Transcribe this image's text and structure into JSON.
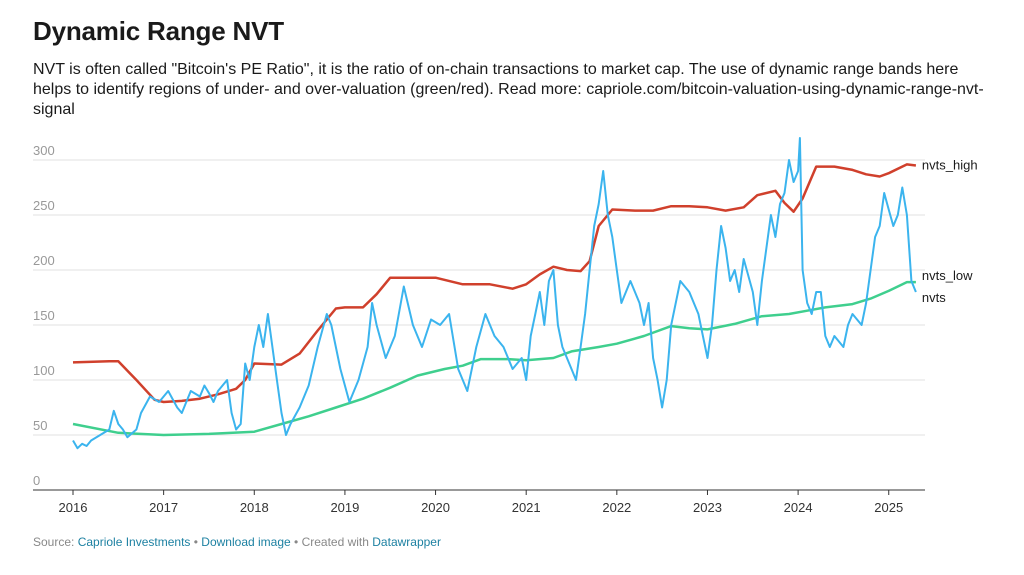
{
  "title": "Dynamic Range NVT",
  "description": "NVT is often called \"Bitcoin's PE Ratio\", it is the ratio of on-chain transactions to market cap. The use of dynamic range bands here helps to identify regions of under- and over-valuation (green/red). Read more: capriole.com/bitcoin-valuation-using-dynamic-range-nvt-signal",
  "footer": {
    "source_prefix": "Source: ",
    "source_link": "Capriole Investments",
    "download": "Download image",
    "created_prefix": "Created with ",
    "created_link": "Datawrapper",
    "separator": " • "
  },
  "colors": {
    "nvts": "#3bb4ee",
    "nvts_high": "#d0402c",
    "nvts_low": "#3fcf8e",
    "grid": "#e2e2e2"
  },
  "chart_data": {
    "type": "line",
    "title": "Dynamic Range NVT",
    "xlabel": "",
    "ylabel": "",
    "xlim": [
      2016,
      2025.4
    ],
    "ylim": [
      0,
      300
    ],
    "yticks": [
      0,
      50,
      100,
      150,
      200,
      250,
      300
    ],
    "xticks": [
      "2016",
      "2017",
      "2018",
      "2019",
      "2020",
      "2021",
      "2022",
      "2023",
      "2024",
      "2025"
    ],
    "grid": true,
    "series": [
      {
        "name": "nvts_high",
        "x": [
          2016.0,
          2016.4,
          2016.5,
          2016.7,
          2016.9,
          2017.0,
          2017.2,
          2017.4,
          2017.6,
          2017.8,
          2017.9,
          2018.0,
          2018.3,
          2018.5,
          2018.7,
          2018.9,
          2019.0,
          2019.2,
          2019.35,
          2019.5,
          2019.8,
          2020.0,
          2020.3,
          2020.6,
          2020.85,
          2021.0,
          2021.15,
          2021.3,
          2021.45,
          2021.6,
          2021.7,
          2021.8,
          2021.95,
          2022.2,
          2022.4,
          2022.6,
          2022.8,
          2023.0,
          2023.2,
          2023.4,
          2023.55,
          2023.75,
          2023.85,
          2023.95,
          2024.05,
          2024.2,
          2024.4,
          2024.6,
          2024.75,
          2024.9,
          2025.0,
          2025.2,
          2025.3
        ],
        "values": [
          116,
          117,
          117,
          100,
          82,
          80,
          81,
          83,
          87,
          92,
          100,
          115,
          114,
          124,
          145,
          165,
          166,
          166,
          178,
          193,
          193,
          193,
          187,
          187,
          183,
          187,
          196,
          203,
          200,
          199,
          208,
          240,
          255,
          254,
          254,
          258,
          258,
          257,
          254,
          257,
          268,
          272,
          261,
          253,
          265,
          294,
          294,
          291,
          287,
          285,
          288,
          296,
          295
        ]
      },
      {
        "name": "nvts_low",
        "x": [
          2016.0,
          2016.5,
          2017.0,
          2017.5,
          2018.0,
          2018.3,
          2018.6,
          2018.9,
          2019.2,
          2019.5,
          2019.8,
          2020.1,
          2020.3,
          2020.5,
          2020.8,
          2021.0,
          2021.3,
          2021.5,
          2021.8,
          2022.0,
          2022.3,
          2022.6,
          2022.8,
          2023.0,
          2023.3,
          2023.6,
          2023.9,
          2024.1,
          2024.3,
          2024.6,
          2024.8,
          2025.0,
          2025.2,
          2025.3
        ],
        "values": [
          60,
          52,
          50,
          51,
          53,
          60,
          67,
          75,
          83,
          93,
          104,
          110,
          113,
          119,
          119,
          118,
          120,
          126,
          130,
          133,
          140,
          149,
          147,
          146,
          151,
          158,
          160,
          163,
          166,
          169,
          174,
          181,
          189,
          189
        ]
      },
      {
        "name": "nvts",
        "x": [
          2016.0,
          2016.05,
          2016.1,
          2016.15,
          2016.2,
          2016.3,
          2016.4,
          2016.45,
          2016.5,
          2016.55,
          2016.6,
          2016.7,
          2016.75,
          2016.85,
          2016.95,
          2017.05,
          2017.15,
          2017.2,
          2017.3,
          2017.4,
          2017.45,
          2017.5,
          2017.55,
          2017.6,
          2017.7,
          2017.75,
          2017.8,
          2017.85,
          2017.9,
          2017.95,
          2018.0,
          2018.05,
          2018.1,
          2018.15,
          2018.2,
          2018.25,
          2018.3,
          2018.35,
          2018.4,
          2018.5,
          2018.6,
          2018.7,
          2018.8,
          2018.85,
          2018.95,
          2019.05,
          2019.15,
          2019.25,
          2019.3,
          2019.35,
          2019.45,
          2019.55,
          2019.65,
          2019.75,
          2019.85,
          2019.95,
          2020.05,
          2020.15,
          2020.25,
          2020.35,
          2020.45,
          2020.55,
          2020.65,
          2020.75,
          2020.85,
          2020.95,
          2021.0,
          2021.05,
          2021.1,
          2021.15,
          2021.2,
          2021.25,
          2021.3,
          2021.35,
          2021.4,
          2021.5,
          2021.55,
          2021.6,
          2021.65,
          2021.7,
          2021.75,
          2021.8,
          2021.85,
          2021.9,
          2021.95,
          2022.0,
          2022.05,
          2022.15,
          2022.25,
          2022.3,
          2022.35,
          2022.4,
          2022.45,
          2022.5,
          2022.55,
          2022.6,
          2022.7,
          2022.8,
          2022.9,
          2022.95,
          2023.0,
          2023.05,
          2023.1,
          2023.15,
          2023.2,
          2023.25,
          2023.3,
          2023.35,
          2023.4,
          2023.5,
          2023.55,
          2023.6,
          2023.65,
          2023.7,
          2023.75,
          2023.8,
          2023.85,
          2023.9,
          2023.95,
          2024.0,
          2024.02,
          2024.05,
          2024.1,
          2024.15,
          2024.2,
          2024.25,
          2024.3,
          2024.35,
          2024.4,
          2024.5,
          2024.55,
          2024.6,
          2024.7,
          2024.75,
          2024.8,
          2024.85,
          2024.9,
          2024.95,
          2025.0,
          2025.05,
          2025.1,
          2025.15,
          2025.2,
          2025.25,
          2025.3
        ],
        "values": [
          45,
          38,
          42,
          40,
          45,
          50,
          55,
          72,
          60,
          55,
          48,
          55,
          70,
          85,
          80,
          90,
          75,
          70,
          90,
          85,
          95,
          88,
          80,
          90,
          100,
          70,
          55,
          60,
          115,
          100,
          130,
          150,
          130,
          160,
          130,
          100,
          70,
          50,
          60,
          75,
          95,
          130,
          160,
          150,
          110,
          80,
          100,
          130,
          170,
          150,
          120,
          140,
          185,
          150,
          130,
          155,
          150,
          160,
          110,
          90,
          130,
          160,
          140,
          130,
          110,
          120,
          100,
          140,
          160,
          180,
          150,
          190,
          200,
          150,
          130,
          110,
          100,
          130,
          160,
          200,
          240,
          260,
          290,
          250,
          230,
          200,
          170,
          190,
          170,
          150,
          170,
          120,
          100,
          75,
          100,
          150,
          190,
          180,
          160,
          140,
          120,
          150,
          200,
          240,
          220,
          190,
          200,
          180,
          210,
          180,
          150,
          190,
          220,
          250,
          230,
          260,
          270,
          300,
          280,
          290,
          320,
          200,
          170,
          160,
          180,
          180,
          140,
          130,
          140,
          130,
          150,
          160,
          150,
          170,
          200,
          230,
          240,
          270,
          255,
          240,
          250,
          275,
          250,
          190,
          180
        ]
      }
    ]
  }
}
